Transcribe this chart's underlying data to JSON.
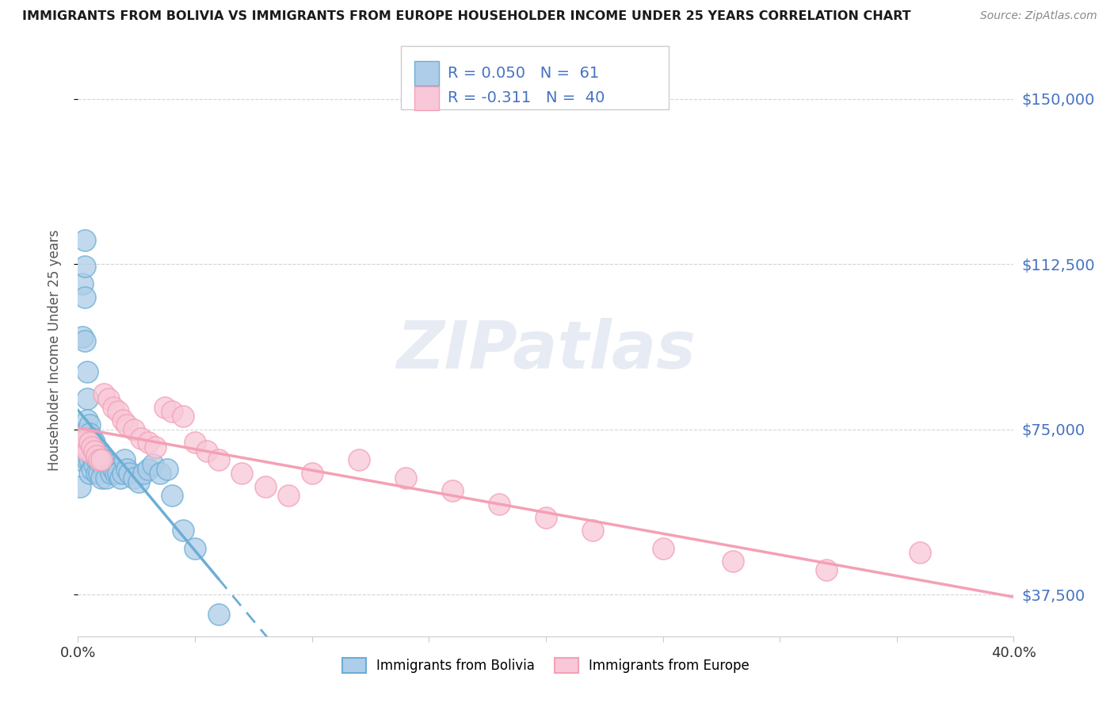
{
  "title": "IMMIGRANTS FROM BOLIVIA VS IMMIGRANTS FROM EUROPE HOUSEHOLDER INCOME UNDER 25 YEARS CORRELATION CHART",
  "source": "Source: ZipAtlas.com",
  "ylabel": "Householder Income Under 25 years",
  "xlim": [
    0.0,
    0.4
  ],
  "ylim": [
    28000,
    158000
  ],
  "yticks": [
    37500,
    75000,
    112500,
    150000
  ],
  "ytick_labels": [
    "$37,500",
    "$75,000",
    "$112,500",
    "$150,000"
  ],
  "bolivia_color": "#6baed6",
  "bolivia_color_fill": "#aecde8",
  "europe_color": "#f4a0b5",
  "europe_color_fill": "#f8c8d8",
  "bolivia_R": 0.05,
  "bolivia_N": 61,
  "europe_R": -0.311,
  "europe_N": 40,
  "watermark": "ZIPatlas",
  "background_color": "#ffffff",
  "grid_color": "#d0d0d0",
  "bolivia_x": [
    0.001,
    0.001,
    0.001,
    0.002,
    0.002,
    0.002,
    0.003,
    0.003,
    0.003,
    0.003,
    0.004,
    0.004,
    0.004,
    0.004,
    0.004,
    0.005,
    0.005,
    0.005,
    0.005,
    0.005,
    0.005,
    0.006,
    0.006,
    0.006,
    0.006,
    0.007,
    0.007,
    0.007,
    0.008,
    0.008,
    0.008,
    0.009,
    0.009,
    0.009,
    0.01,
    0.01,
    0.01,
    0.011,
    0.012,
    0.012,
    0.013,
    0.014,
    0.015,
    0.016,
    0.017,
    0.018,
    0.019,
    0.02,
    0.021,
    0.022,
    0.024,
    0.026,
    0.028,
    0.03,
    0.032,
    0.035,
    0.038,
    0.04,
    0.045,
    0.05,
    0.06
  ],
  "bolivia_y": [
    68000,
    74000,
    62000,
    108000,
    96000,
    70000,
    118000,
    112000,
    105000,
    95000,
    88000,
    82000,
    77000,
    73000,
    68000,
    76000,
    74000,
    72000,
    70000,
    68000,
    65000,
    73000,
    71000,
    69000,
    66000,
    72000,
    70000,
    67000,
    70000,
    68000,
    65000,
    70000,
    68000,
    65000,
    69000,
    67000,
    64000,
    68000,
    67000,
    64000,
    67000,
    65000,
    66000,
    65000,
    65000,
    64000,
    65000,
    68000,
    66000,
    65000,
    64000,
    63000,
    65000,
    66000,
    67000,
    65000,
    66000,
    60000,
    52000,
    48000,
    33000
  ],
  "europe_x": [
    0.001,
    0.002,
    0.003,
    0.004,
    0.005,
    0.006,
    0.007,
    0.008,
    0.009,
    0.01,
    0.011,
    0.013,
    0.015,
    0.017,
    0.019,
    0.021,
    0.024,
    0.027,
    0.03,
    0.033,
    0.037,
    0.04,
    0.045,
    0.05,
    0.055,
    0.06,
    0.07,
    0.08,
    0.09,
    0.1,
    0.12,
    0.14,
    0.16,
    0.18,
    0.2,
    0.22,
    0.25,
    0.28,
    0.32,
    0.36
  ],
  "europe_y": [
    72000,
    71000,
    73000,
    70000,
    72000,
    71000,
    70000,
    69000,
    68000,
    68000,
    83000,
    82000,
    80000,
    79000,
    77000,
    76000,
    75000,
    73000,
    72000,
    71000,
    80000,
    79000,
    78000,
    72000,
    70000,
    68000,
    65000,
    62000,
    60000,
    65000,
    68000,
    64000,
    61000,
    58000,
    55000,
    52000,
    48000,
    45000,
    43000,
    47000
  ]
}
